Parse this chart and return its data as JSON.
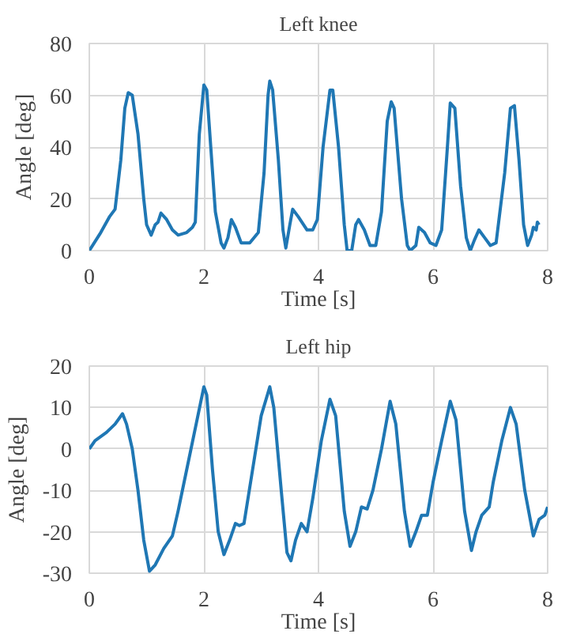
{
  "chart_data": [
    {
      "type": "line",
      "title": "Left knee",
      "xlabel": "Time [s]",
      "ylabel": "Angle [deg]",
      "xlim": [
        0,
        8
      ],
      "xticks": [
        0,
        2,
        4,
        6,
        8
      ],
      "ylim": [
        0,
        80
      ],
      "yticks": [
        0,
        20,
        40,
        60,
        80
      ],
      "grid": true,
      "marker": "none",
      "line_style": "solid",
      "series": [
        {
          "color": "#1f77b4",
          "x": [
            0,
            0.2,
            0.35,
            0.45,
            0.55,
            0.62,
            0.68,
            0.75,
            0.85,
            0.95,
            1.0,
            1.08,
            1.15,
            1.2,
            1.25,
            1.35,
            1.45,
            1.55,
            1.7,
            1.8,
            1.85,
            1.92,
            2.0,
            2.05,
            2.12,
            2.2,
            2.3,
            2.35,
            2.42,
            2.48,
            2.55,
            2.65,
            2.8,
            2.95,
            3.05,
            3.12,
            3.15,
            3.2,
            3.3,
            3.38,
            3.43,
            3.5,
            3.55,
            3.65,
            3.8,
            3.9,
            3.98,
            4.08,
            4.2,
            4.25,
            4.35,
            4.45,
            4.5,
            4.58,
            4.65,
            4.7,
            4.8,
            4.9,
            5.0,
            5.1,
            5.2,
            5.27,
            5.32,
            5.45,
            5.55,
            5.6,
            5.7,
            5.75,
            5.85,
            5.95,
            6.05,
            6.15,
            6.25,
            6.3,
            6.38,
            6.48,
            6.58,
            6.65,
            6.72,
            6.8,
            6.9,
            7.0,
            7.1,
            7.25,
            7.35,
            7.42,
            7.5,
            7.58,
            7.65,
            7.72,
            7.75,
            7.8,
            7.82,
            7.85
          ],
          "values": [
            0,
            7,
            13,
            16,
            35,
            55,
            61,
            60,
            45,
            20,
            10,
            6,
            10,
            11,
            14.5,
            12,
            8,
            6,
            7,
            9,
            11,
            45,
            64,
            62,
            40,
            15,
            3,
            1,
            5,
            12,
            9,
            3,
            3,
            7,
            30,
            60,
            65.5,
            62,
            35,
            8,
            1,
            10,
            16,
            13,
            8,
            8,
            12,
            40,
            62,
            62,
            40,
            10,
            0,
            0,
            10,
            12,
            8,
            2,
            2,
            15,
            50,
            57.5,
            55,
            20,
            2,
            0,
            2,
            9,
            7,
            3,
            2,
            8,
            40,
            57,
            55,
            25,
            5,
            0,
            4,
            8,
            5,
            2,
            3,
            30,
            55,
            56,
            35,
            10,
            2,
            6,
            9,
            8,
            11,
            10
          ]
        }
      ]
    },
    {
      "type": "line",
      "title": "Left hip",
      "xlabel": "Time [s]",
      "ylabel": "Angle [deg]",
      "xlim": [
        0,
        8
      ],
      "xticks": [
        0,
        2,
        4,
        6,
        8
      ],
      "ylim": [
        -30,
        20
      ],
      "yticks": [
        -30,
        -20,
        -10,
        0,
        10,
        20
      ],
      "grid": true,
      "marker": "none",
      "line_style": "solid",
      "series": [
        {
          "color": "#1f77b4",
          "x": [
            0,
            0.1,
            0.3,
            0.45,
            0.58,
            0.65,
            0.75,
            0.85,
            0.95,
            1.05,
            1.15,
            1.3,
            1.45,
            1.55,
            1.7,
            1.85,
            2.0,
            2.05,
            2.15,
            2.25,
            2.35,
            2.45,
            2.55,
            2.62,
            2.7,
            2.85,
            3.0,
            3.15,
            3.22,
            3.35,
            3.45,
            3.52,
            3.6,
            3.7,
            3.8,
            3.9,
            4.05,
            4.2,
            4.3,
            4.45,
            4.55,
            4.65,
            4.75,
            4.85,
            4.95,
            5.1,
            5.25,
            5.35,
            5.5,
            5.6,
            5.7,
            5.8,
            5.9,
            6.0,
            6.15,
            6.3,
            6.4,
            6.55,
            6.67,
            6.75,
            6.85,
            6.98,
            7.05,
            7.2,
            7.35,
            7.45,
            7.6,
            7.75,
            7.85,
            7.95,
            8.0
          ],
          "values": [
            0,
            2,
            4,
            6,
            8.5,
            6,
            0,
            -10,
            -22,
            -29.5,
            -28,
            -24,
            -21,
            -15,
            -5,
            5,
            15,
            13,
            -5,
            -20,
            -25.5,
            -22,
            -18,
            -18.5,
            -18,
            -5,
            8,
            15,
            10,
            -10,
            -25,
            -27,
            -22,
            -18,
            -20,
            -12,
            2,
            12,
            8,
            -15,
            -23.5,
            -20,
            -14,
            -14.5,
            -10,
            0,
            11.5,
            6,
            -15,
            -23.5,
            -20,
            -16,
            -16,
            -8,
            2,
            11.5,
            7,
            -15,
            -24.5,
            -20,
            -16,
            -14,
            -8,
            2,
            10,
            6,
            -10,
            -21,
            -17,
            -16,
            -14
          ]
        }
      ]
    }
  ]
}
